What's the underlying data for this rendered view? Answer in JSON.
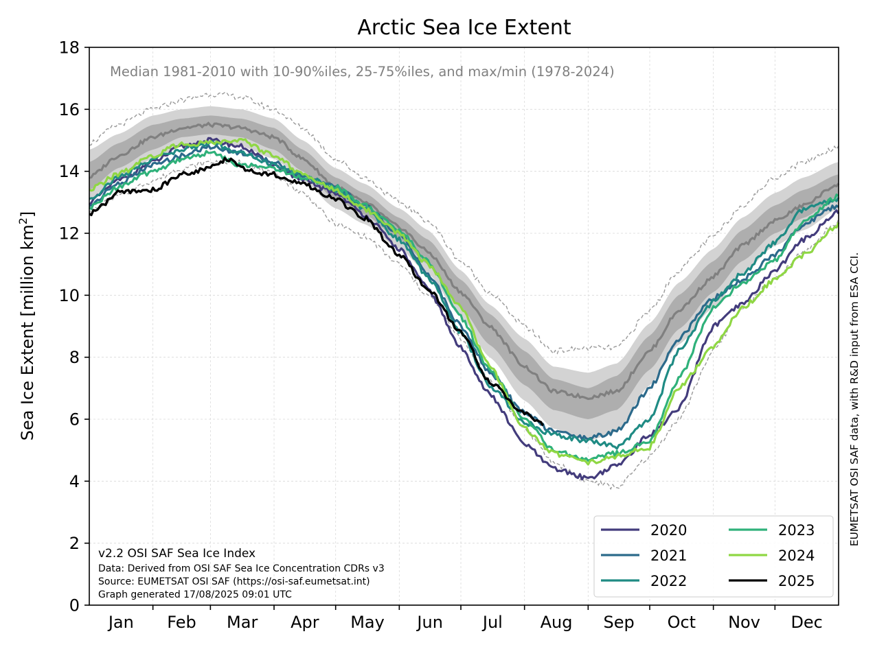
{
  "chart_data": {
    "type": "line",
    "title": "Arctic Sea Ice Extent",
    "subtitle": "Median 1981-2010 with 10-90%iles, 25-75%iles, and max/min (1978-2024)",
    "ylabel": "Sea Ice Extent [million km",
    "ylabel_sup": "2",
    "ylabel_end": "]",
    "ylim": [
      0,
      18
    ],
    "yticks": [
      "0",
      "2",
      "4",
      "6",
      "8",
      "10",
      "12",
      "14",
      "16",
      "18"
    ],
    "xlim": [
      1,
      366
    ],
    "month_labels": [
      "Jan",
      "Feb",
      "Mar",
      "Apr",
      "May",
      "Jun",
      "Jul",
      "Aug",
      "Sep",
      "Oct",
      "Nov",
      "Dec"
    ],
    "month_starts": [
      1,
      32,
      60,
      91,
      121,
      152,
      182,
      213,
      244,
      274,
      305,
      335,
      366
    ],
    "grid": true,
    "legend_position": "lower-right",
    "legend_columns": 2,
    "bands": {
      "x": [
        1,
        15,
        32,
        46,
        60,
        75,
        91,
        105,
        121,
        135,
        152,
        166,
        182,
        196,
        213,
        227,
        244,
        258,
        274,
        288,
        305,
        319,
        335,
        349,
        366
      ],
      "max": [
        14.9,
        15.5,
        16.0,
        16.3,
        16.5,
        16.4,
        16.0,
        15.4,
        14.4,
        13.8,
        13.0,
        12.4,
        11.1,
        10.1,
        9.0,
        8.2,
        8.3,
        8.3,
        9.5,
        10.8,
        11.9,
        12.9,
        13.8,
        14.3,
        14.8
      ],
      "p90": [
        14.7,
        15.2,
        15.8,
        16.0,
        16.1,
        16.0,
        15.7,
        15.0,
        14.1,
        13.6,
        12.8,
        12.1,
        10.8,
        9.7,
        8.6,
        7.7,
        7.5,
        7.8,
        9.1,
        10.4,
        11.5,
        12.5,
        13.3,
        13.8,
        14.3
      ],
      "p75": [
        14.3,
        14.9,
        15.5,
        15.7,
        15.8,
        15.7,
        15.4,
        14.7,
        13.8,
        13.3,
        12.5,
        11.8,
        10.5,
        9.4,
        8.2,
        7.3,
        7.0,
        7.4,
        8.7,
        10.0,
        11.1,
        12.1,
        12.9,
        13.4,
        13.9
      ],
      "median": [
        13.8,
        14.5,
        15.1,
        15.4,
        15.5,
        15.4,
        15.1,
        14.4,
        13.5,
        13.0,
        12.2,
        11.4,
        10.1,
        9.0,
        7.7,
        6.9,
        6.7,
        6.9,
        8.2,
        9.5,
        10.6,
        11.6,
        12.4,
        12.9,
        13.6
      ],
      "p25": [
        13.4,
        14.1,
        14.7,
        15.1,
        15.2,
        15.1,
        14.7,
        14.0,
        13.1,
        12.6,
        11.8,
        11.0,
        9.6,
        8.4,
        7.1,
        6.3,
        6.0,
        6.3,
        7.6,
        8.9,
        10.1,
        11.1,
        12.0,
        12.5,
        13.2
      ],
      "p10": [
        13.1,
        13.8,
        14.4,
        14.8,
        14.9,
        14.8,
        14.4,
        13.7,
        12.8,
        12.3,
        11.5,
        10.7,
        9.3,
        8.0,
        6.6,
        5.7,
        5.3,
        5.6,
        7.1,
        8.4,
        9.6,
        10.7,
        11.6,
        12.1,
        12.8
      ],
      "min": [
        12.7,
        13.2,
        13.7,
        14.1,
        14.3,
        14.3,
        13.9,
        13.3,
        12.3,
        11.9,
        11.0,
        10.0,
        8.6,
        7.3,
        5.7,
        4.6,
        4.0,
        3.8,
        4.8,
        6.0,
        8.2,
        9.6,
        10.5,
        11.4,
        12.4
      ]
    },
    "series": [
      {
        "name": "2020",
        "color": "#433c7c",
        "x": [
          1,
          15,
          32,
          46,
          60,
          75,
          91,
          105,
          121,
          135,
          152,
          166,
          182,
          196,
          213,
          227,
          244,
          258,
          274,
          288,
          305,
          319,
          335,
          349,
          366
        ],
        "values": [
          13.0,
          13.7,
          14.3,
          14.8,
          15.0,
          14.8,
          14.2,
          13.7,
          13.3,
          12.6,
          11.5,
          10.2,
          8.3,
          6.8,
          5.2,
          4.4,
          4.1,
          4.5,
          5.5,
          6.3,
          9.0,
          9.7,
          10.8,
          11.8,
          12.7
        ]
      },
      {
        "name": "2021",
        "color": "#2c6a8b",
        "x": [
          1,
          15,
          32,
          46,
          60,
          75,
          91,
          105,
          121,
          135,
          152,
          166,
          182,
          196,
          213,
          227,
          244,
          258,
          274,
          288,
          305,
          319,
          335,
          349,
          366
        ],
        "values": [
          12.9,
          13.6,
          14.2,
          14.5,
          14.8,
          14.6,
          14.3,
          13.8,
          13.5,
          12.9,
          12.0,
          10.7,
          9.0,
          7.5,
          6.2,
          5.6,
          5.4,
          5.6,
          7.0,
          8.6,
          9.9,
          10.5,
          11.3,
          12.3,
          12.9
        ]
      },
      {
        "name": "2022",
        "color": "#1f8b84",
        "x": [
          1,
          15,
          32,
          46,
          60,
          75,
          91,
          105,
          121,
          135,
          152,
          166,
          182,
          196,
          213,
          227,
          244,
          258,
          274,
          288,
          305,
          319,
          335,
          349,
          366
        ],
        "values": [
          13.1,
          13.8,
          14.4,
          14.7,
          14.9,
          14.6,
          14.2,
          13.9,
          13.4,
          12.8,
          11.8,
          10.6,
          8.8,
          7.1,
          5.9,
          5.5,
          5.3,
          5.1,
          6.0,
          8.2,
          9.8,
          10.7,
          11.7,
          12.8,
          13.1
        ]
      },
      {
        "name": "2023",
        "color": "#2fb17a",
        "x": [
          1,
          15,
          32,
          46,
          60,
          75,
          91,
          105,
          121,
          135,
          152,
          166,
          182,
          196,
          213,
          227,
          244,
          258,
          274,
          288,
          305,
          319,
          335,
          349,
          366
        ],
        "values": [
          12.8,
          13.5,
          14.0,
          14.4,
          14.6,
          14.2,
          14.1,
          13.8,
          13.5,
          12.9,
          12.1,
          11.1,
          9.3,
          7.6,
          6.0,
          5.0,
          4.7,
          4.9,
          5.3,
          7.3,
          9.6,
          10.4,
          11.1,
          12.4,
          13.2
        ]
      },
      {
        "name": "2024",
        "color": "#8fd744",
        "x": [
          1,
          15,
          32,
          46,
          60,
          75,
          91,
          105,
          121,
          135,
          152,
          166,
          182,
          196,
          213,
          227,
          244,
          258,
          274,
          288,
          305,
          319,
          335,
          349,
          366
        ],
        "values": [
          13.4,
          13.9,
          14.5,
          14.9,
          14.9,
          15.0,
          14.5,
          13.9,
          13.4,
          12.8,
          12.0,
          11.0,
          9.6,
          7.7,
          5.7,
          4.9,
          4.6,
          4.8,
          5.1,
          7.0,
          8.3,
          9.6,
          10.5,
          11.3,
          12.3
        ]
      },
      {
        "name": "2025",
        "color": "#000000",
        "x": [
          1,
          5,
          15,
          32,
          46,
          60,
          68,
          80,
          91,
          105,
          121,
          135,
          152,
          166,
          182,
          196,
          213,
          222
        ],
        "values": [
          12.6,
          12.8,
          13.3,
          13.4,
          13.9,
          14.1,
          14.4,
          14.0,
          13.9,
          13.6,
          13.1,
          12.5,
          11.3,
          10.2,
          8.8,
          7.2,
          6.2,
          5.8
        ]
      }
    ]
  },
  "footnote": {
    "version": "v2.2 OSI SAF Sea Ice Index",
    "data": "Data: Derived from OSI SAF Sea Ice Concentration CDRs v3",
    "source": "Source: EUMETSAT OSI SAF (https://osi-saf.eumetsat.int)",
    "generated": "Graph generated 17/08/2025 09:01 UTC"
  },
  "credit": "EUMETSAT OSI SAF data, with R&D input from ESA CCI."
}
